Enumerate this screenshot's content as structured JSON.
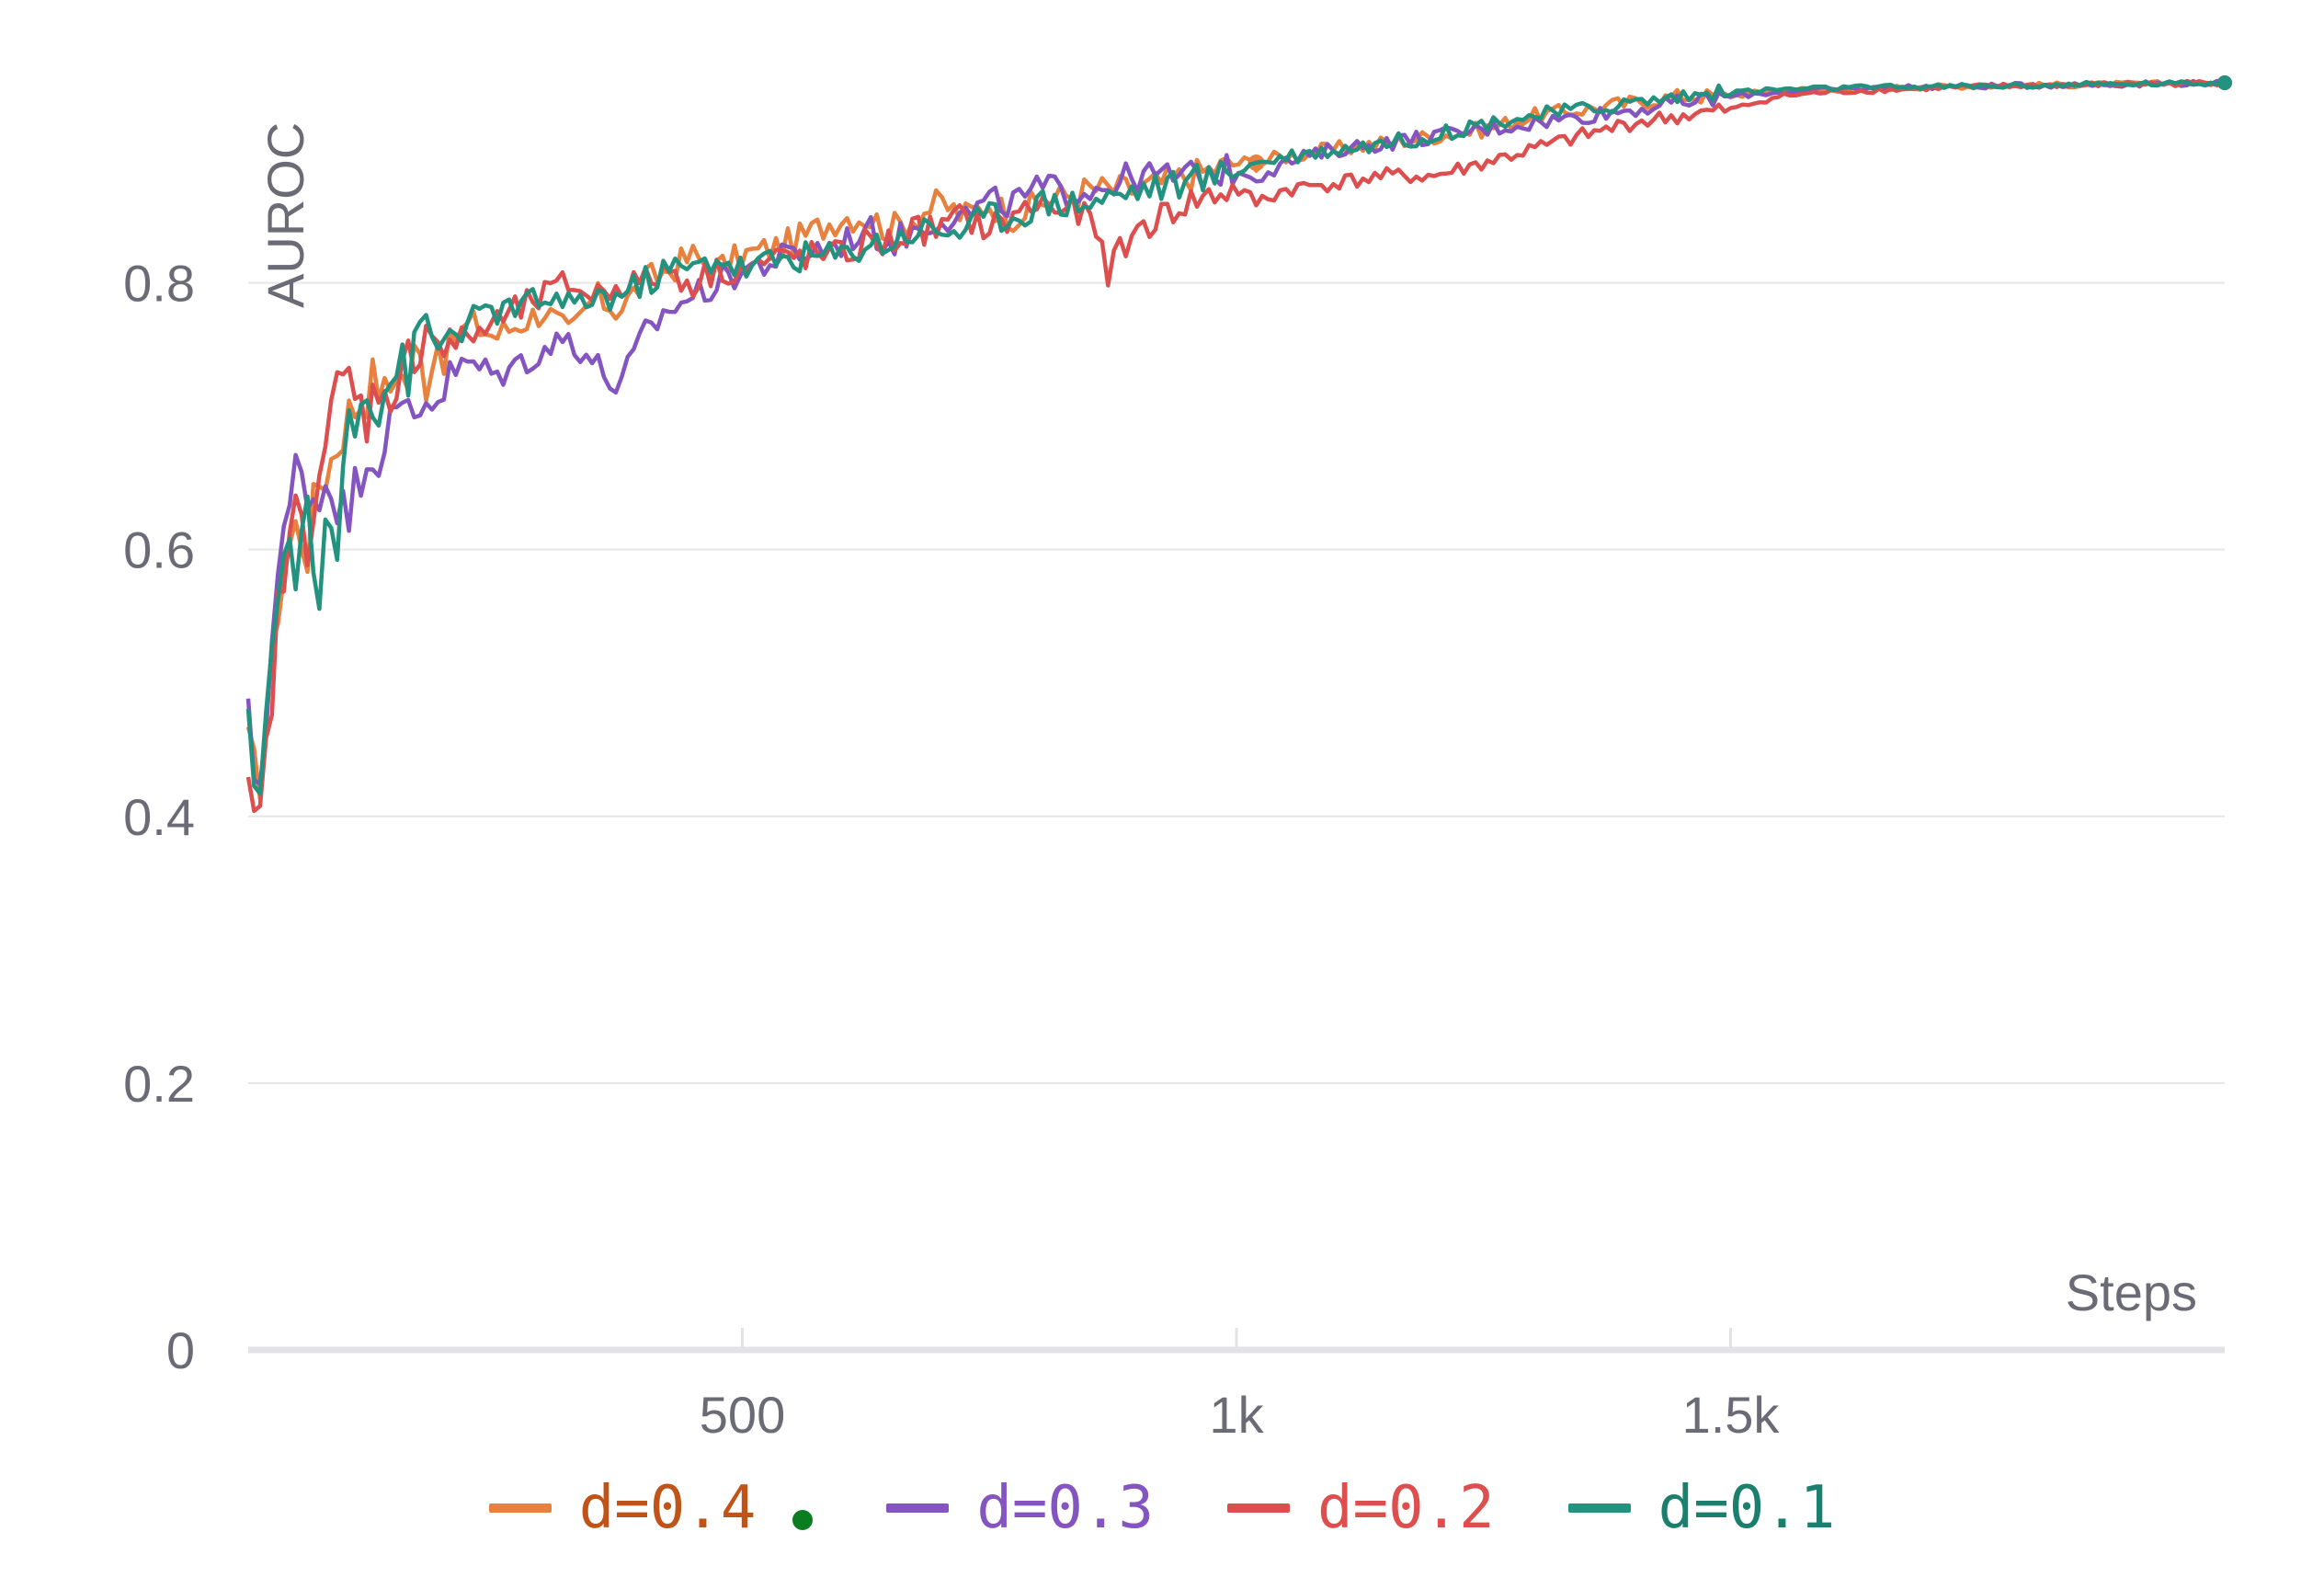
{
  "chart_data": {
    "type": "line",
    "xlabel": "Steps",
    "ylabel": "AUROC",
    "xlim": [
      0,
      2000
    ],
    "ylim": [
      0,
      0.95
    ],
    "xticks": [
      {
        "v": 500,
        "label": "500"
      },
      {
        "v": 1000,
        "label": "1k"
      },
      {
        "v": 1500,
        "label": "1.5k"
      }
    ],
    "yticks": [
      {
        "v": 0,
        "label": "0"
      },
      {
        "v": 0.2,
        "label": "0.2"
      },
      {
        "v": 0.4,
        "label": "0.4"
      },
      {
        "v": 0.6,
        "label": "0.6"
      },
      {
        "v": 0.8,
        "label": "0.8"
      }
    ],
    "grid": "horizontal",
    "legend_position": "bottom",
    "series": [
      {
        "name": "d=0.4",
        "color": "#e8803e",
        "label_color": "#c05418",
        "marker_at": 1020,
        "x": [
          0,
          10,
          20,
          30,
          40,
          50,
          60,
          70,
          80,
          90,
          100,
          110,
          120,
          130,
          140,
          150,
          160,
          170,
          180,
          190,
          200,
          225,
          250,
          275,
          300,
          325,
          350,
          375,
          400,
          425,
          450,
          475,
          500,
          550,
          600,
          625,
          650,
          675,
          700,
          725,
          750,
          775,
          800,
          850,
          900,
          950,
          1000,
          1020,
          1050,
          1100,
          1150,
          1200,
          1250,
          1300,
          1350,
          1400,
          1450,
          1500,
          1550,
          1600,
          1700,
          1800,
          1900,
          2000
        ],
        "y": [
          0.45,
          0.42,
          0.48,
          0.56,
          0.6,
          0.62,
          0.6,
          0.65,
          0.66,
          0.68,
          0.7,
          0.71,
          0.72,
          0.73,
          0.71,
          0.74,
          0.72,
          0.75,
          0.73,
          0.76,
          0.75,
          0.77,
          0.76,
          0.77,
          0.78,
          0.76,
          0.79,
          0.78,
          0.8,
          0.81,
          0.82,
          0.81,
          0.82,
          0.83,
          0.85,
          0.85,
          0.84,
          0.85,
          0.86,
          0.85,
          0.86,
          0.85,
          0.86,
          0.87,
          0.87,
          0.88,
          0.89,
          0.89,
          0.895,
          0.9,
          0.905,
          0.91,
          0.915,
          0.925,
          0.93,
          0.935,
          0.94,
          0.94,
          0.945,
          0.945,
          0.947,
          0.948,
          0.949,
          0.95
        ]
      },
      {
        "name": "d=0.3",
        "color": "#8455c0",
        "label_color": "#8455c0",
        "x": [
          0,
          10,
          20,
          30,
          40,
          50,
          60,
          70,
          80,
          90,
          100,
          110,
          120,
          130,
          140,
          150,
          160,
          170,
          180,
          190,
          200,
          225,
          250,
          275,
          300,
          325,
          350,
          375,
          400,
          425,
          450,
          475,
          500,
          550,
          600,
          625,
          650,
          675,
          700,
          725,
          750,
          775,
          800,
          850,
          900,
          950,
          1000,
          1020,
          1050,
          1100,
          1150,
          1200,
          1250,
          1300,
          1350,
          1400,
          1450,
          1500,
          1550,
          1600,
          1700,
          1800,
          1900,
          2000
        ],
        "y": [
          0.47,
          0.41,
          0.5,
          0.58,
          0.62,
          0.67,
          0.65,
          0.63,
          0.66,
          0.64,
          0.62,
          0.65,
          0.68,
          0.66,
          0.7,
          0.69,
          0.71,
          0.7,
          0.72,
          0.71,
          0.73,
          0.74,
          0.73,
          0.74,
          0.75,
          0.76,
          0.74,
          0.72,
          0.76,
          0.78,
          0.79,
          0.8,
          0.81,
          0.82,
          0.83,
          0.84,
          0.83,
          0.84,
          0.85,
          0.85,
          0.86,
          0.86,
          0.87,
          0.87,
          0.88,
          0.88,
          0.885,
          0.88,
          0.89,
          0.9,
          0.905,
          0.91,
          0.915,
          0.92,
          0.925,
          0.93,
          0.935,
          0.94,
          0.943,
          0.945,
          0.947,
          0.948,
          0.949,
          0.95
        ]
      },
      {
        "name": "d=0.2",
        "color": "#dd4f4f",
        "label_color": "#dd4f4f",
        "x": [
          0,
          10,
          20,
          30,
          40,
          50,
          60,
          70,
          80,
          90,
          100,
          110,
          120,
          130,
          140,
          150,
          160,
          170,
          180,
          190,
          200,
          225,
          250,
          275,
          300,
          325,
          350,
          375,
          400,
          425,
          450,
          475,
          500,
          550,
          600,
          625,
          650,
          675,
          700,
          725,
          750,
          775,
          800,
          850,
          870,
          900,
          950,
          1000,
          1020,
          1050,
          1100,
          1150,
          1200,
          1250,
          1300,
          1350,
          1400,
          1450,
          1500,
          1550,
          1600,
          1700,
          1800,
          1900,
          2000
        ],
        "y": [
          0.41,
          0.38,
          0.46,
          0.55,
          0.6,
          0.63,
          0.61,
          0.66,
          0.68,
          0.72,
          0.73,
          0.71,
          0.7,
          0.72,
          0.73,
          0.71,
          0.74,
          0.75,
          0.77,
          0.76,
          0.75,
          0.76,
          0.77,
          0.78,
          0.79,
          0.8,
          0.79,
          0.8,
          0.8,
          0.81,
          0.8,
          0.81,
          0.81,
          0.82,
          0.82,
          0.83,
          0.83,
          0.84,
          0.84,
          0.85,
          0.84,
          0.85,
          0.86,
          0.85,
          0.81,
          0.84,
          0.86,
          0.87,
          0.86,
          0.87,
          0.875,
          0.88,
          0.88,
          0.89,
          0.9,
          0.91,
          0.92,
          0.925,
          0.93,
          0.94,
          0.943,
          0.946,
          0.948,
          0.949,
          0.95
        ]
      },
      {
        "name": "d=0.1",
        "color": "#23927f",
        "label_color": "#1a7f6c",
        "x": [
          0,
          10,
          20,
          30,
          40,
          50,
          60,
          70,
          80,
          90,
          100,
          110,
          120,
          130,
          140,
          150,
          160,
          170,
          180,
          190,
          200,
          225,
          250,
          275,
          300,
          325,
          350,
          375,
          400,
          425,
          450,
          475,
          500,
          550,
          600,
          625,
          650,
          675,
          700,
          725,
          750,
          775,
          800,
          850,
          900,
          950,
          1000,
          1020,
          1050,
          1100,
          1150,
          1200,
          1250,
          1300,
          1350,
          1400,
          1450,
          1500,
          1550,
          1600,
          1700,
          1800,
          1900,
          2000
        ],
        "y": [
          0.46,
          0.42,
          0.49,
          0.57,
          0.6,
          0.59,
          0.62,
          0.55,
          0.63,
          0.59,
          0.72,
          0.7,
          0.73,
          0.7,
          0.72,
          0.74,
          0.73,
          0.75,
          0.77,
          0.75,
          0.76,
          0.77,
          0.78,
          0.78,
          0.79,
          0.78,
          0.79,
          0.79,
          0.8,
          0.81,
          0.81,
          0.82,
          0.81,
          0.82,
          0.82,
          0.83,
          0.83,
          0.84,
          0.84,
          0.84,
          0.85,
          0.85,
          0.86,
          0.86,
          0.87,
          0.875,
          0.885,
          0.89,
          0.895,
          0.9,
          0.905,
          0.91,
          0.92,
          0.925,
          0.93,
          0.935,
          0.94,
          0.943,
          0.945,
          0.946,
          0.947,
          0.948,
          0.949,
          0.95
        ]
      }
    ]
  },
  "legend": {
    "items": [
      {
        "label": "d=0.4",
        "color": "#e8803e",
        "label_color": "#c05418",
        "dot": true,
        "dot_color": "#0a7d20"
      },
      {
        "label": "d=0.3",
        "color": "#8455c0",
        "label_color": "#8455c0",
        "dot": false
      },
      {
        "label": "d=0.2",
        "color": "#dd4f4f",
        "label_color": "#dd4f4f",
        "dot": false
      },
      {
        "label": "d=0.1",
        "color": "#23927f",
        "label_color": "#1a7f6c",
        "dot": false
      }
    ]
  }
}
